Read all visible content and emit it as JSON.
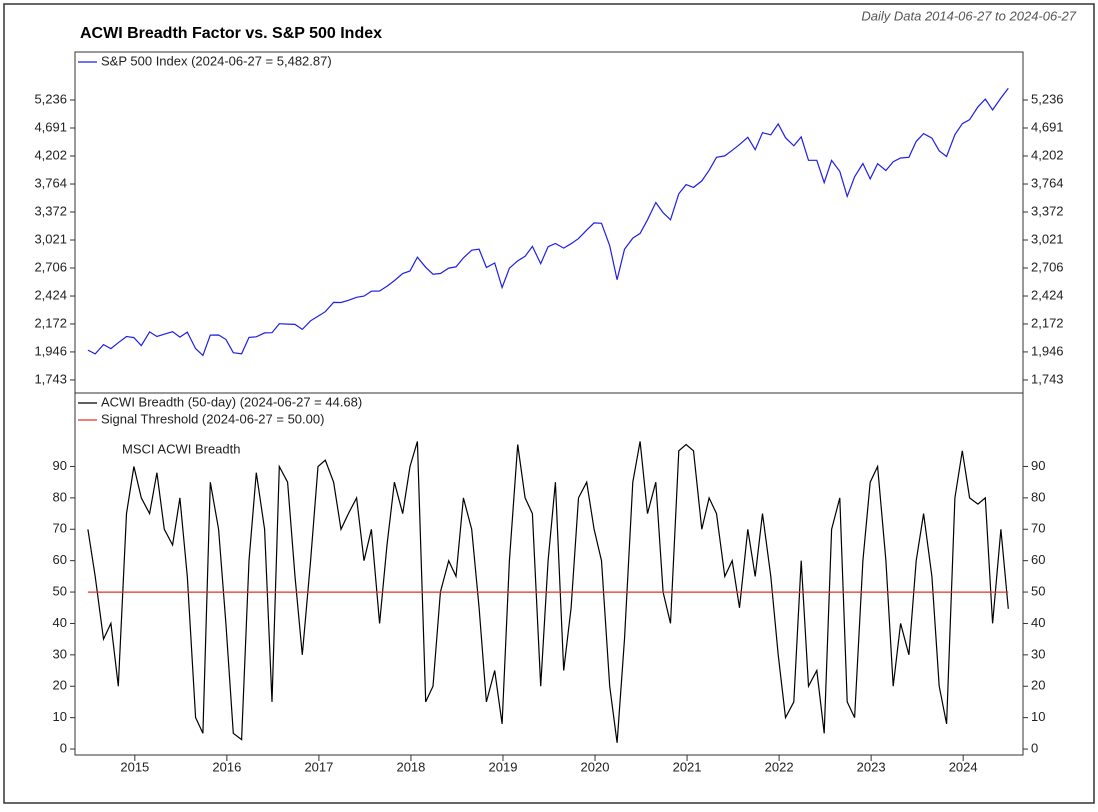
{
  "header": {
    "title": "ACWI Breadth Factor vs. S&P 500 Index",
    "subtitle": "Daily Data 2014-06-27 to 2024-06-27"
  },
  "chart_data": [
    {
      "type": "line",
      "log_scale": true,
      "series": [
        {
          "name": "S&P 500 Index (2024-06-27 = 5,482.87)",
          "color": "#1f1fe6",
          "x": [
            2014.49,
            2014.57,
            2014.66,
            2014.74,
            2014.82,
            2014.91,
            2014.99,
            2015.07,
            2015.16,
            2015.24,
            2015.32,
            2015.41,
            2015.49,
            2015.57,
            2015.66,
            2015.74,
            2015.82,
            2015.91,
            2015.99,
            2016.07,
            2016.16,
            2016.24,
            2016.32,
            2016.41,
            2016.49,
            2016.57,
            2016.66,
            2016.74,
            2016.82,
            2016.91,
            2016.99,
            2017.07,
            2017.16,
            2017.24,
            2017.32,
            2017.41,
            2017.49,
            2017.57,
            2017.66,
            2017.74,
            2017.82,
            2017.91,
            2017.99,
            2018.07,
            2018.16,
            2018.24,
            2018.32,
            2018.41,
            2018.49,
            2018.57,
            2018.66,
            2018.74,
            2018.82,
            2018.91,
            2018.99,
            2019.07,
            2019.16,
            2019.24,
            2019.32,
            2019.41,
            2019.49,
            2019.57,
            2019.66,
            2019.74,
            2019.82,
            2019.91,
            2019.99,
            2020.07,
            2020.16,
            2020.24,
            2020.32,
            2020.41,
            2020.49,
            2020.57,
            2020.66,
            2020.74,
            2020.82,
            2020.91,
            2020.99,
            2021.07,
            2021.16,
            2021.24,
            2021.32,
            2021.41,
            2021.49,
            2021.57,
            2021.66,
            2021.74,
            2021.82,
            2021.91,
            2021.99,
            2022.07,
            2022.16,
            2022.24,
            2022.32,
            2022.41,
            2022.49,
            2022.57,
            2022.66,
            2022.74,
            2022.82,
            2022.91,
            2022.99,
            2023.07,
            2023.16,
            2023.24,
            2023.32,
            2023.41,
            2023.49,
            2023.57,
            2023.66,
            2023.74,
            2023.82,
            2023.91,
            2023.99,
            2024.07,
            2024.16,
            2024.24,
            2024.32,
            2024.41,
            2024.49
          ],
          "values": [
            1960,
            1931,
            2003,
            1972,
            2018,
            2068,
            2059,
            1995,
            2105,
            2068,
            2086,
            2107,
            2063,
            2104,
            1972,
            1920,
            2079,
            2080,
            2044,
            1940,
            1932,
            2060,
            2065,
            2097,
            2099,
            2174,
            2171,
            2168,
            2126,
            2199,
            2239,
            2279,
            2364,
            2363,
            2384,
            2412,
            2423,
            2470,
            2472,
            2519,
            2575,
            2648,
            2674,
            2824,
            2714,
            2641,
            2648,
            2705,
            2718,
            2816,
            2902,
            2914,
            2712,
            2760,
            2507,
            2704,
            2784,
            2834,
            2946,
            2752,
            2942,
            2980,
            2926,
            2977,
            3038,
            3141,
            3231,
            3226,
            2954,
            2585,
            2912,
            3044,
            3100,
            3271,
            3500,
            3363,
            3270,
            3622,
            3756,
            3714,
            3811,
            3973,
            4181,
            4204,
            4298,
            4395,
            4523,
            4308,
            4605,
            4567,
            4766,
            4516,
            4374,
            4530,
            4132,
            4132,
            3785,
            4130,
            3955,
            3586,
            3872,
            4080,
            3840,
            4077,
            3970,
            4109,
            4169,
            4180,
            4450,
            4589,
            4508,
            4288,
            4194,
            4568,
            4770,
            4846,
            5096,
            5254,
            5036,
            5278,
            5483
          ]
        }
      ],
      "xlim": [
        2014.35,
        2024.65
      ],
      "ylim": [
        1656,
        6323
      ],
      "yticks": [
        {
          "value": 1743,
          "label": "1,743"
        },
        {
          "value": 1946,
          "label": "1,946"
        },
        {
          "value": 2172,
          "label": "2,172"
        },
        {
          "value": 2424,
          "label": "2,424"
        },
        {
          "value": 2706,
          "label": "2,706"
        },
        {
          "value": 3021,
          "label": "3,021"
        },
        {
          "value": 3372,
          "label": "3,372"
        },
        {
          "value": 3764,
          "label": "3,764"
        },
        {
          "value": 4202,
          "label": "4,202"
        },
        {
          "value": 4691,
          "label": "4,691"
        },
        {
          "value": 5236,
          "label": "5,236"
        }
      ]
    },
    {
      "type": "line",
      "annotation": "MSCI ACWI Breadth",
      "series": [
        {
          "name": "ACWI Breadth (50-day) (2024-06-27 = 44.68)",
          "color": "#000000",
          "x": [
            2014.49,
            2014.57,
            2014.66,
            2014.74,
            2014.82,
            2014.91,
            2014.99,
            2015.07,
            2015.16,
            2015.24,
            2015.32,
            2015.41,
            2015.49,
            2015.57,
            2015.66,
            2015.74,
            2015.82,
            2015.91,
            2015.99,
            2016.07,
            2016.16,
            2016.24,
            2016.32,
            2016.41,
            2016.49,
            2016.57,
            2016.66,
            2016.74,
            2016.82,
            2016.91,
            2016.99,
            2017.07,
            2017.16,
            2017.24,
            2017.32,
            2017.41,
            2017.49,
            2017.57,
            2017.66,
            2017.74,
            2017.82,
            2017.91,
            2017.99,
            2018.07,
            2018.16,
            2018.24,
            2018.32,
            2018.41,
            2018.49,
            2018.57,
            2018.66,
            2018.74,
            2018.82,
            2018.91,
            2018.99,
            2019.07,
            2019.16,
            2019.24,
            2019.32,
            2019.41,
            2019.49,
            2019.57,
            2019.66,
            2019.74,
            2019.82,
            2019.91,
            2019.99,
            2020.07,
            2020.16,
            2020.24,
            2020.32,
            2020.41,
            2020.49,
            2020.57,
            2020.66,
            2020.74,
            2020.82,
            2020.91,
            2020.99,
            2021.07,
            2021.16,
            2021.24,
            2021.32,
            2021.41,
            2021.49,
            2021.57,
            2021.66,
            2021.74,
            2021.82,
            2021.91,
            2021.99,
            2022.07,
            2022.16,
            2022.24,
            2022.32,
            2022.41,
            2022.49,
            2022.57,
            2022.66,
            2022.74,
            2022.82,
            2022.91,
            2022.99,
            2023.07,
            2023.16,
            2023.24,
            2023.32,
            2023.41,
            2023.49,
            2023.57,
            2023.66,
            2023.74,
            2023.82,
            2023.91,
            2023.99,
            2024.07,
            2024.16,
            2024.24,
            2024.32,
            2024.41,
            2024.49
          ],
          "values": [
            70,
            55,
            35,
            40,
            20,
            75,
            90,
            80,
            75,
            88,
            70,
            65,
            80,
            55,
            10,
            5,
            85,
            70,
            40,
            5,
            3,
            60,
            88,
            70,
            15,
            90,
            85,
            55,
            30,
            60,
            90,
            92,
            85,
            70,
            75,
            80,
            60,
            70,
            40,
            65,
            85,
            75,
            90,
            98,
            15,
            20,
            50,
            60,
            55,
            80,
            70,
            45,
            15,
            25,
            8,
            60,
            97,
            80,
            75,
            20,
            60,
            85,
            25,
            45,
            80,
            85,
            70,
            60,
            20,
            2,
            35,
            85,
            98,
            75,
            85,
            50,
            40,
            95,
            97,
            95,
            70,
            80,
            75,
            55,
            60,
            45,
            70,
            55,
            75,
            55,
            30,
            10,
            15,
            60,
            20,
            25,
            5,
            70,
            80,
            15,
            10,
            60,
            85,
            90,
            60,
            20,
            40,
            30,
            60,
            75,
            55,
            20,
            8,
            80,
            95,
            80,
            78,
            80,
            40,
            70,
            44.68
          ]
        },
        {
          "name": "Signal Threshold (2024-06-27 = 50.00)",
          "color": "#e0302a",
          "x": [
            2014.49,
            2024.49
          ],
          "values": [
            50,
            50
          ]
        }
      ],
      "xlim": [
        2014.35,
        2024.65
      ],
      "xticks": [
        2015,
        2016,
        2017,
        2018,
        2019,
        2020,
        2021,
        2022,
        2023,
        2024
      ],
      "ylim": [
        -1.9,
        113.4
      ],
      "yticks": [
        0,
        10,
        20,
        30,
        40,
        50,
        60,
        70,
        80,
        90
      ]
    }
  ]
}
